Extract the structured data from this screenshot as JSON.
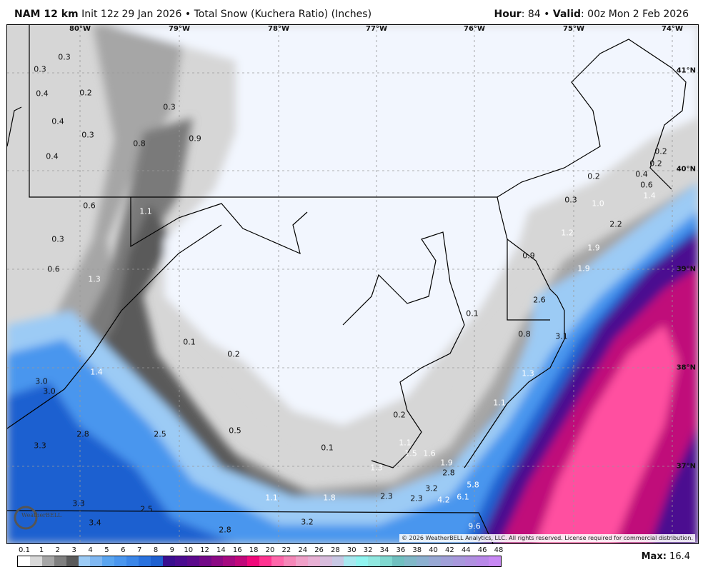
{
  "header": {
    "model": "NAM 12 km",
    "init": "Init 12z 29 Jan 2026",
    "separator": "•",
    "product": "Total Snow (Kuchera Ratio) (Inches)",
    "hour_label": "Hour",
    "hour": ": 84",
    "valid_label": "Valid",
    "valid": ": 00z Mon 2 Feb 2026"
  },
  "map": {
    "longitudes": [
      "80°W",
      "79°W",
      "78°W",
      "77°W",
      "76°W",
      "75°W",
      "74°W"
    ],
    "latitudes": [
      "41°N",
      "40°N",
      "39°N",
      "38°N",
      "37°N"
    ],
    "snow_labels": [
      "0.3",
      "0.3",
      "0.4",
      "0.2",
      "0.3",
      "0.4",
      "0.3",
      "0.8",
      "0.9",
      "0.4",
      "0.2",
      "0.2",
      "0.2",
      "0.4",
      "0.6",
      "1.4",
      "0.6",
      "1.1",
      "0.3",
      "1.0",
      "2.2",
      "1.2",
      "0.3",
      "0.9",
      "1.9",
      "1.9",
      "0.6",
      "1.3",
      "2.6",
      "0.1",
      "0.8",
      "3.1",
      "0.1",
      "0.2",
      "1.4",
      "1.3",
      "3.0",
      "3.0",
      "1.1",
      "0.2",
      "2.8",
      "2.5",
      "0.5",
      "1.1",
      "1.5",
      "1.6",
      "1.9",
      "0.1",
      "3.3",
      "1.3",
      "2.8",
      "5.8",
      "3.2",
      "6.1",
      "1.1",
      "1.8",
      "2.3",
      "2.3",
      "4.2",
      "3.3",
      "2.5",
      "3.4",
      "3.2",
      "9.6",
      "2.8"
    ],
    "logo": "WeatherBELL",
    "copyright": "© 2026 WeatherBELL Analytics, LLC. All rights reserved. License required for commercial distribution."
  },
  "colors": {
    "no_snow": "#f2f6fe",
    "light_gray": "#d6d6d6",
    "gray": "#a6a6a6",
    "dark_gray": "#7f7f7f",
    "darkest_gray": "#5a5a5a",
    "light_blue": "#9ccbf5",
    "blue": "#4a96ee",
    "deep_blue": "#1f60d0",
    "purple": "#4b0c90",
    "magenta": "#c0087a",
    "pink": "#ff4fa0"
  },
  "legend": {
    "ticks": [
      "0.1",
      "1",
      "2",
      "3",
      "4",
      "5",
      "6",
      "7",
      "8",
      "9",
      "10",
      "12",
      "14",
      "16",
      "18",
      "20",
      "22",
      "24",
      "26",
      "28",
      "30",
      "32",
      "34",
      "36",
      "38",
      "40",
      "42",
      "44",
      "46",
      "48"
    ],
    "colors": [
      "#ffffff",
      "#d9d9d9",
      "#a6a6a6",
      "#7f7f7f",
      "#5a5a5a",
      "#9ccbf5",
      "#80b8f2",
      "#5aa5f0",
      "#4a96ee",
      "#3b86e8",
      "#2a72de",
      "#1f60d0",
      "#3a0f8f",
      "#4b0c90",
      "#5c0a8c",
      "#730a88",
      "#8c0a84",
      "#a50a80",
      "#c0087a",
      "#f0087a",
      "#ff3390",
      "#ff66aa",
      "#f587b8",
      "#f0a0c8",
      "#e8b0d4",
      "#d8bcdc",
      "#c8c8e4",
      "#a8e8f0",
      "#90f4f0",
      "#90e8e0",
      "#80d8d0",
      "#70c0c0",
      "#80b8c8",
      "#8cb0d0",
      "#98a8d4",
      "#a0a0d8",
      "#a898dc",
      "#b090e0",
      "#b888e8",
      "#c888f4"
    ],
    "max_label": "Max:",
    "max_value": "16.4"
  }
}
